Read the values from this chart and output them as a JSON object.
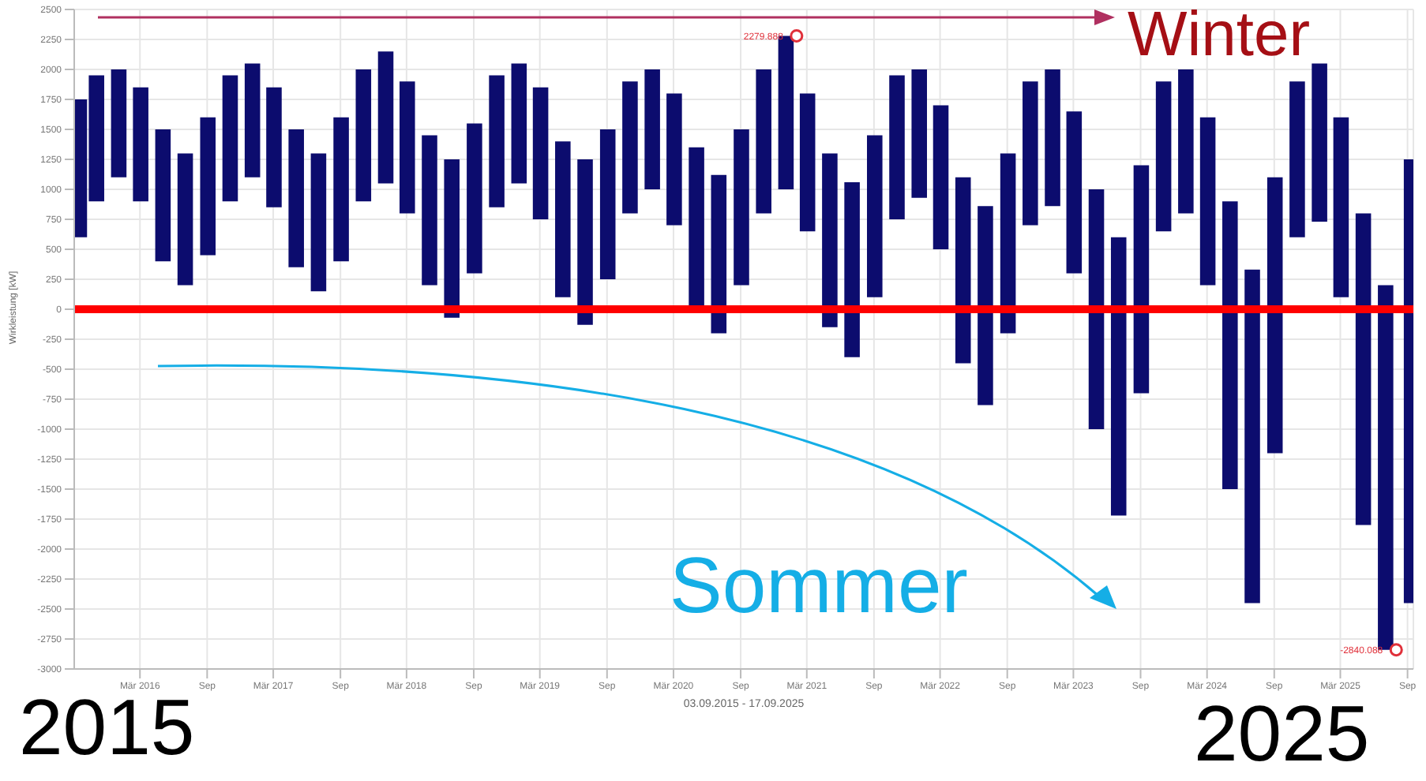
{
  "chart_data": {
    "type": "bar",
    "ylabel": "Wirkleistung [kW]",
    "xlabel": "03.09.2015 - 17.09.2025",
    "x": [
      "2015-09-15",
      "2015-11-01",
      "2016-01-01",
      "2016-03-01",
      "2016-05-01",
      "2016-07-01",
      "2016-09-01",
      "2016-11-01",
      "2017-01-01",
      "2017-03-01",
      "2017-05-01",
      "2017-07-01",
      "2017-09-01",
      "2017-11-01",
      "2018-01-01",
      "2018-03-01",
      "2018-05-01",
      "2018-07-01",
      "2018-09-01",
      "2018-11-01",
      "2019-01-01",
      "2019-03-01",
      "2019-05-01",
      "2019-07-01",
      "2019-09-01",
      "2019-11-01",
      "2020-01-01",
      "2020-03-01",
      "2020-05-01",
      "2020-07-01",
      "2020-09-01",
      "2020-11-01",
      "2021-01-01",
      "2021-03-01",
      "2021-05-01",
      "2021-07-01",
      "2021-09-01",
      "2021-11-01",
      "2022-01-01",
      "2022-03-01",
      "2022-05-01",
      "2022-07-01",
      "2022-09-01",
      "2022-11-01",
      "2023-01-01",
      "2023-03-01",
      "2023-05-01",
      "2023-07-01",
      "2023-09-01",
      "2023-11-01",
      "2024-01-01",
      "2024-03-01",
      "2024-05-01",
      "2024-07-01",
      "2024-09-01",
      "2024-11-01",
      "2025-01-01",
      "2025-03-01",
      "2025-05-01",
      "2025-07-01",
      "2025-09-10"
    ],
    "base": [
      600,
      900,
      1100,
      900,
      400,
      200,
      450,
      900,
      1100,
      850,
      350,
      150,
      400,
      900,
      1050,
      800,
      200,
      -70,
      300,
      850,
      1050,
      750,
      100,
      -130,
      250,
      800,
      1000,
      700,
      0,
      -200,
      200,
      800,
      1000,
      650,
      -150,
      -400,
      100,
      750,
      930,
      500,
      -450,
      -800,
      -200,
      700,
      860,
      300,
      -1000,
      -1720,
      -700,
      650,
      800,
      200,
      -1500,
      -2450,
      -1200,
      600,
      730,
      100,
      -1800,
      -2840,
      -2450
    ],
    "values": [
      1150,
      1050,
      900,
      950,
      1100,
      1100,
      1150,
      1050,
      950,
      1000,
      1150,
      1150,
      1200,
      1100,
      1100,
      1100,
      1250,
      1320,
      1250,
      1100,
      1000,
      1100,
      1300,
      1380,
      1250,
      1100,
      1000,
      1100,
      1350,
      1320,
      1300,
      1200,
      1280,
      1150,
      1450,
      1460,
      1350,
      1200,
      1070,
      1200,
      1550,
      1660,
      1500,
      1200,
      1140,
      1350,
      2000,
      2320,
      1900,
      1250,
      1200,
      1400,
      2400,
      2780,
      2300,
      1300,
      1320,
      1500,
      2600,
      3040,
      3700
    ],
    "color": "#0c0c6e",
    "xlim": [
      "2015-09-03",
      "2025-09-17"
    ],
    "xticks": [
      {
        "value": "2016-03-01",
        "label": "Mär 2016"
      },
      {
        "value": "2016-09-01",
        "label": "Sep"
      },
      {
        "value": "2017-03-01",
        "label": "Mär 2017"
      },
      {
        "value": "2017-09-01",
        "label": "Sep"
      },
      {
        "value": "2018-03-01",
        "label": "Mär 2018"
      },
      {
        "value": "2018-09-01",
        "label": "Sep"
      },
      {
        "value": "2019-03-01",
        "label": "Mär 2019"
      },
      {
        "value": "2019-09-01",
        "label": "Sep"
      },
      {
        "value": "2020-03-01",
        "label": "Mär 2020"
      },
      {
        "value": "2020-09-01",
        "label": "Sep"
      },
      {
        "value": "2021-03-01",
        "label": "Mär 2021"
      },
      {
        "value": "2021-09-01",
        "label": "Sep"
      },
      {
        "value": "2022-03-01",
        "label": "Mär 2022"
      },
      {
        "value": "2022-09-01",
        "label": "Sep"
      },
      {
        "value": "2023-03-01",
        "label": "Mär 2023"
      },
      {
        "value": "2023-09-01",
        "label": "Sep"
      },
      {
        "value": "2024-03-01",
        "label": "Mär 2024"
      },
      {
        "value": "2024-09-01",
        "label": "Sep"
      },
      {
        "value": "2025-03-01",
        "label": "Mär 2025"
      },
      {
        "value": "2025-09-01",
        "label": "Sep"
      }
    ],
    "ylim": [
      -3000,
      2500
    ],
    "yticks": [
      -3000,
      -2750,
      -2500,
      -2250,
      -2000,
      -1750,
      -1500,
      -1250,
      -1000,
      -750,
      -500,
      -250,
      0,
      250,
      500,
      750,
      1000,
      1250,
      1500,
      1750,
      2000,
      2250,
      2500
    ],
    "grid": true,
    "ref_lines": [
      {
        "axis": "y",
        "value": 0,
        "color": "#ff0000"
      }
    ],
    "annotations": [
      "Winter",
      "Sommer",
      "2015",
      "2025",
      {
        "text": "2279.888",
        "x": "2021-02-01",
        "y": 2279.888
      },
      {
        "text": "-2840.088",
        "x": "2025-08-01",
        "y": -2840.088
      }
    ]
  }
}
